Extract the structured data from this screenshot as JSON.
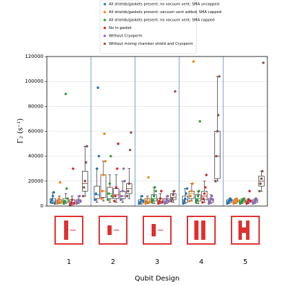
{
  "chart_data": {
    "type": "box-strip",
    "categories": [
      "1",
      "2",
      "3",
      "4",
      "5"
    ],
    "x_label": "Qubit Design",
    "y_label": "Γ₂ (s⁻¹)",
    "ylim": [
      0,
      120000
    ],
    "yticks": [
      0,
      20000,
      40000,
      60000,
      80000,
      100000,
      120000
    ],
    "grid": true,
    "legend": "top",
    "series": [
      {
        "name": "All shields/gaskets present; no vacuum vent; SMA uncapped",
        "color": "#1f77b4",
        "points": [
          [
            3000,
            5000,
            8000,
            11000,
            2000
          ],
          [
            5000,
            10000,
            30000,
            95000,
            40000
          ],
          [
            2000,
            3000,
            5000,
            8000,
            4000
          ],
          [
            2000,
            4000,
            6000,
            10000,
            14000
          ],
          [
            2000,
            3000,
            4000,
            6000,
            5000
          ]
        ],
        "boxes": [
          [
            2000,
            3000,
            4000,
            6000,
            11000
          ],
          [
            3000,
            6000,
            9000,
            16000,
            30000
          ],
          [
            1500,
            2500,
            3500,
            5000,
            8000
          ],
          [
            2000,
            3000,
            5000,
            8000,
            14000
          ],
          [
            2000,
            3000,
            4000,
            5000,
            6000
          ]
        ]
      },
      {
        "name": "All shields/gaskets present; vacuum vent added; SMA capped",
        "color": "#ff7f0e",
        "points": [
          [
            2000,
            4000,
            6000,
            19000,
            3000
          ],
          [
            6000,
            12000,
            25000,
            58000,
            36000
          ],
          [
            2000,
            4000,
            6000,
            23000,
            3000
          ],
          [
            4000,
            8000,
            12000,
            18000,
            116000
          ],
          [
            2000,
            3000,
            5000,
            6000,
            4000
          ]
        ],
        "boxes": [
          [
            2000,
            3000,
            4000,
            5000,
            8000
          ],
          [
            4000,
            7000,
            12000,
            25000,
            36000
          ],
          [
            2000,
            3000,
            4000,
            6000,
            8000
          ],
          [
            4000,
            6000,
            10000,
            12000,
            18000
          ],
          [
            2000,
            3000,
            4000,
            5000,
            6000
          ]
        ]
      },
      {
        "name": "All shields/gaskets present; no vacuum vent; SMA capped",
        "color": "#2ca02c",
        "points": [
          [
            2000,
            4000,
            90000,
            14000,
            6000
          ],
          [
            5000,
            10000,
            18000,
            40000,
            8000
          ],
          [
            3000,
            5000,
            8000,
            15000,
            12000
          ],
          [
            3000,
            5000,
            8000,
            12000,
            68000
          ],
          [
            2000,
            3000,
            4000,
            5000,
            6000
          ]
        ],
        "boxes": [
          [
            2000,
            3000,
            4000,
            6000,
            10000
          ],
          [
            3000,
            6000,
            10000,
            15000,
            25000
          ],
          [
            2000,
            4000,
            6000,
            9000,
            15000
          ],
          [
            2000,
            4000,
            6000,
            9000,
            12000
          ],
          [
            2000,
            3000,
            4000,
            5000,
            6000
          ]
        ]
      },
      {
        "name": "No In gasket",
        "color": "#d62728",
        "points": [
          [
            1000,
            3000,
            5000,
            30000,
            2000
          ],
          [
            4000,
            8000,
            15000,
            30000,
            50000
          ],
          [
            2000,
            4000,
            6000,
            12000,
            3000
          ],
          [
            3000,
            6000,
            10000,
            15000,
            25000
          ],
          [
            2000,
            3000,
            5000,
            12000,
            4000
          ]
        ],
        "boxes": [
          [
            1000,
            2000,
            3000,
            5000,
            8000
          ],
          [
            3000,
            6000,
            9000,
            14000,
            25000
          ],
          [
            2000,
            3000,
            4000,
            6000,
            10000
          ],
          [
            3000,
            5000,
            8000,
            12000,
            20000
          ],
          [
            2000,
            3000,
            4000,
            5000,
            6000
          ]
        ]
      },
      {
        "name": "Without Cryoperm",
        "color": "#9467bd",
        "points": [
          [
            2000,
            3000,
            5000,
            8000,
            4000
          ],
          [
            5000,
            8000,
            12000,
            30000,
            20000
          ],
          [
            2000,
            3000,
            5000,
            8000,
            4000
          ],
          [
            2000,
            4000,
            6000,
            8000,
            5000
          ],
          [
            2000,
            3000,
            4000,
            6000,
            5000
          ]
        ],
        "boxes": [
          [
            2000,
            3000,
            4000,
            5000,
            8000
          ],
          [
            3000,
            6000,
            8000,
            12000,
            20000
          ],
          [
            2000,
            3000,
            4000,
            6000,
            8000
          ],
          [
            2000,
            3000,
            5000,
            6000,
            9000
          ],
          [
            2000,
            3000,
            4000,
            5000,
            6000
          ]
        ]
      },
      {
        "name": "Without mixing chamber shield and Cryoperm",
        "color": "#8c564b",
        "points": [
          [
            8000,
            15000,
            20000,
            35000,
            48000
          ],
          [
            8000,
            12000,
            18000,
            45000,
            59000
          ],
          [
            4000,
            6000,
            9000,
            12000,
            92000
          ],
          [
            20000,
            40000,
            60000,
            73000,
            104000
          ],
          [
            12000,
            18000,
            22000,
            28000,
            115000
          ]
        ],
        "boxes": [
          [
            8000,
            12000,
            18000,
            28000,
            48000
          ],
          [
            6000,
            10000,
            14000,
            18000,
            30000
          ],
          [
            3000,
            5000,
            7000,
            10000,
            12000
          ],
          [
            20000,
            22000,
            40000,
            60000,
            104000
          ],
          [
            12000,
            16000,
            20000,
            24000,
            28000
          ]
        ]
      }
    ]
  }
}
